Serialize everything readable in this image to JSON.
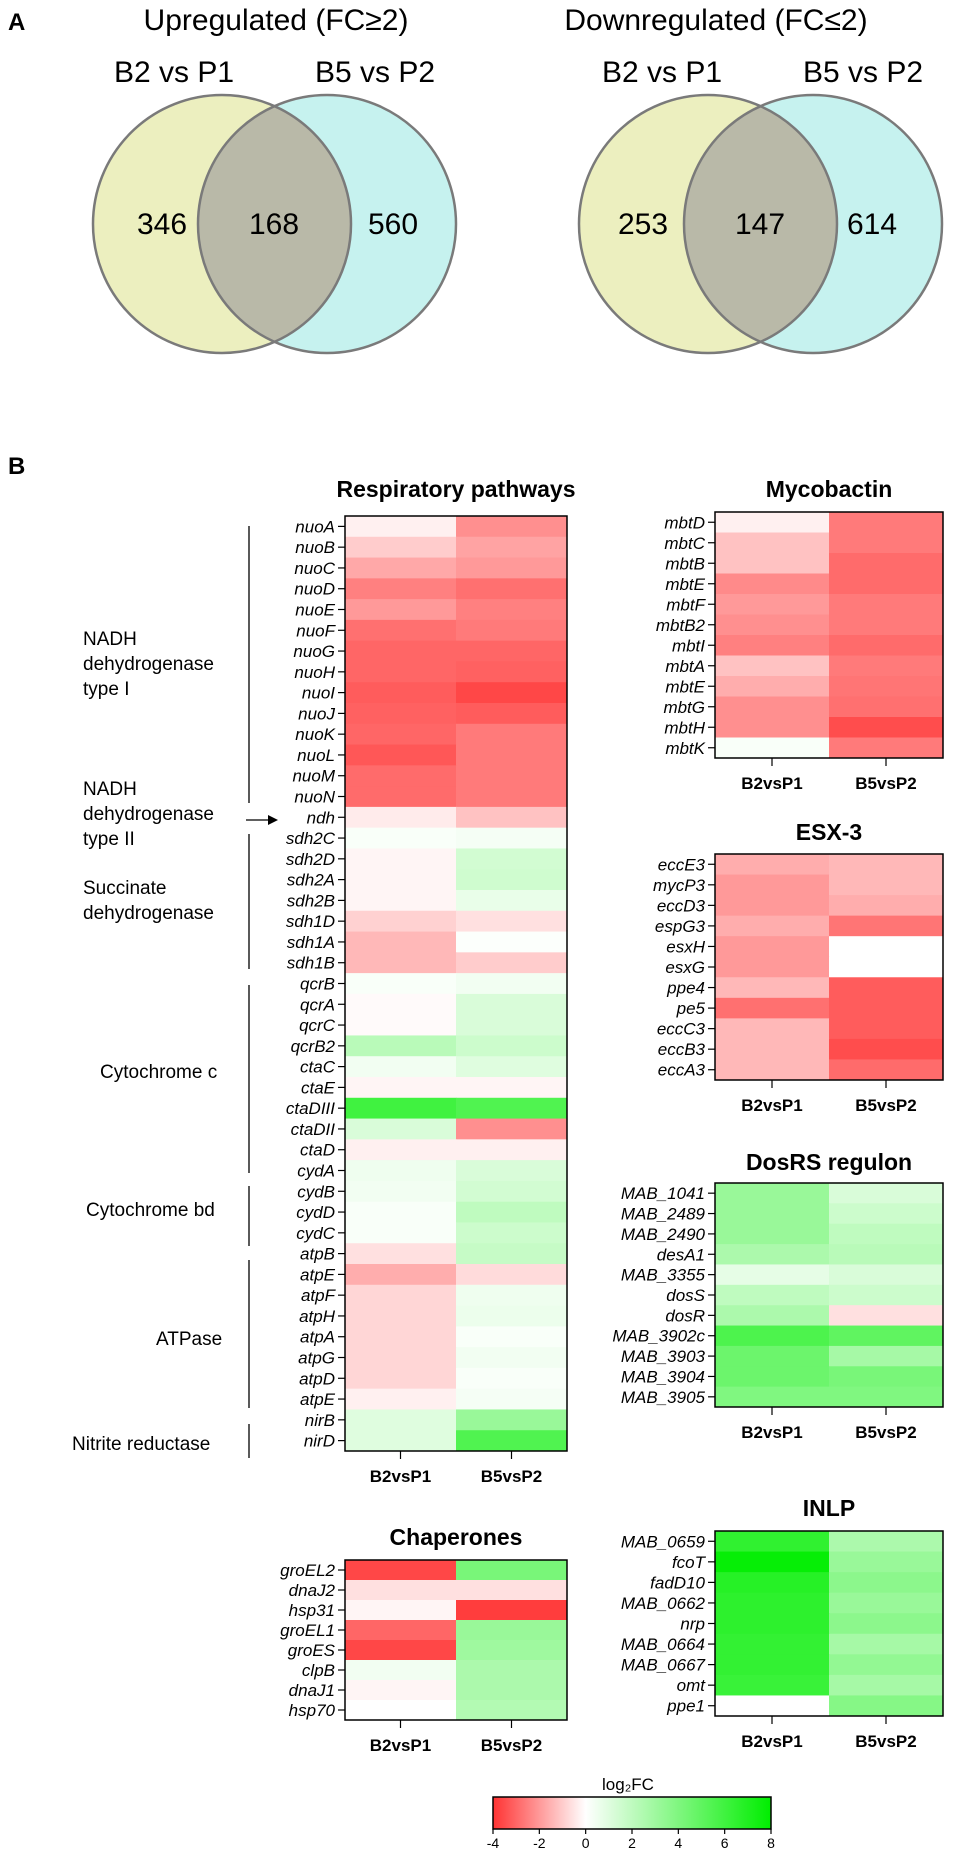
{
  "panel_labels": {
    "a": "A",
    "b": "B"
  },
  "venn": [
    {
      "title": "Upregulated (FC≥2)",
      "left_label": "B2 vs P1",
      "right_label": "B5 vs P2",
      "left_only": "346",
      "overlap": "168",
      "right_only": "560"
    },
    {
      "title": "Downregulated (FC≤2)",
      "left_label": "B2 vs P1",
      "right_label": "B5 vs P2",
      "left_only": "253",
      "overlap": "147",
      "right_only": "614"
    }
  ],
  "colors": {
    "venn_left": "#ecefbf",
    "venn_right": "#c6f2ef",
    "venn_overlap": "#b9b9a8",
    "venn_edge": "#7a7a7a",
    "neg": "#ff3333",
    "zero": "#ffffff",
    "pos": "#00ee00"
  },
  "colorbar": {
    "label": "log₂FC",
    "ticks": [
      "-4",
      "-2",
      "0",
      "2",
      "4",
      "6",
      "8"
    ],
    "min": -4,
    "max": 8
  },
  "heatmap_columns": [
    "B2vsP1",
    "B5vsP2"
  ],
  "group_labels": [
    {
      "id": "nadh1",
      "lines": [
        "NADH",
        "dehydrogenase",
        "type I"
      ]
    },
    {
      "id": "nadh2",
      "lines": [
        "NADH",
        "dehydrogenase",
        "type II"
      ]
    },
    {
      "id": "sdh",
      "lines": [
        "Succinate",
        "dehydrogenase"
      ]
    },
    {
      "id": "cytc",
      "lines": [
        "Cytochrome c"
      ]
    },
    {
      "id": "cytbd",
      "lines": [
        "Cytochrome bd"
      ]
    },
    {
      "id": "atpase",
      "lines": [
        "ATPase"
      ]
    },
    {
      "id": "nitrite",
      "lines": [
        "Nitrite reductase"
      ]
    }
  ],
  "chart_data": [
    {
      "type": "heatmap",
      "title": "Respiratory pathways",
      "columns": [
        "B2vsP1",
        "B5vsP2"
      ],
      "rows": [
        "nuoA",
        "nuoB",
        "nuoC",
        "nuoD",
        "nuoE",
        "nuoF",
        "nuoG",
        "nuoH",
        "nuoI",
        "nuoJ",
        "nuoK",
        "nuoL",
        "nuoM",
        "nuoN",
        "ndh",
        "sdh2C",
        "sdh2D",
        "sdh2A",
        "sdh2B",
        "sdh1D",
        "sdh1A",
        "sdh1B",
        "qcrB",
        "qcrA",
        "qcrC",
        "qcrB2",
        "ctaC",
        "ctaE",
        "ctaDIII",
        "ctaDII",
        "ctaD",
        "cydA",
        "cydB",
        "cydD",
        "cydC",
        "atpB",
        "atpE",
        "atpF",
        "atpH",
        "atpA",
        "atpG",
        "atpD",
        "atpE",
        "nirB",
        "nirD"
      ],
      "values": [
        [
          -0.3,
          -2.2
        ],
        [
          -1.0,
          -1.8
        ],
        [
          -1.7,
          -2.0
        ],
        [
          -2.5,
          -2.8
        ],
        [
          -2.0,
          -2.5
        ],
        [
          -2.8,
          -2.6
        ],
        [
          -3.0,
          -3.0
        ],
        [
          -3.0,
          -3.1
        ],
        [
          -3.2,
          -3.6
        ],
        [
          -3.1,
          -3.2
        ],
        [
          -3.0,
          -2.6
        ],
        [
          -3.3,
          -2.6
        ],
        [
          -2.9,
          -2.6
        ],
        [
          -2.9,
          -2.6
        ],
        [
          -0.4,
          -1.2
        ],
        [
          0.2,
          0.3
        ],
        [
          -0.2,
          1.4
        ],
        [
          -0.2,
          1.5
        ],
        [
          -0.2,
          0.7
        ],
        [
          -0.9,
          -0.6
        ],
        [
          -1.4,
          0.1
        ],
        [
          -1.4,
          -1.0
        ],
        [
          0.2,
          0.4
        ],
        [
          -0.1,
          1.2
        ],
        [
          -0.1,
          1.2
        ],
        [
          2.2,
          1.6
        ],
        [
          0.4,
          1.0
        ],
        [
          -0.2,
          -0.2
        ],
        [
          6.0,
          5.5
        ],
        [
          1.2,
          -2.2
        ],
        [
          -0.3,
          -0.3
        ],
        [
          0.5,
          1.2
        ],
        [
          0.4,
          1.4
        ],
        [
          0.2,
          2.0
        ],
        [
          0.2,
          1.6
        ],
        [
          -0.6,
          1.8
        ],
        [
          -1.6,
          -0.7
        ],
        [
          -0.8,
          0.5
        ],
        [
          -0.8,
          0.6
        ],
        [
          -0.8,
          0.2
        ],
        [
          -0.8,
          0.4
        ],
        [
          -0.8,
          0.2
        ],
        [
          -0.3,
          0.3
        ],
        [
          1.0,
          3.2
        ],
        [
          1.0,
          5.5
        ]
      ],
      "row_groups": [
        {
          "label": "NADH dehydrogenase type I",
          "rows": [
            "nuoA",
            "nuoN"
          ]
        },
        {
          "label": "NADH dehydrogenase type II",
          "rows": [
            "ndh",
            "ndh"
          ]
        },
        {
          "label": "Succinate dehydrogenase",
          "rows": [
            "sdh2C",
            "sdh1B"
          ]
        },
        {
          "label": "Cytochrome c",
          "rows": [
            "qcrB",
            "ctaD"
          ]
        },
        {
          "label": "Cytochrome bd",
          "rows": [
            "cydA",
            "cydC"
          ]
        },
        {
          "label": "ATPase",
          "rows": [
            "atpB",
            "atpE"
          ]
        },
        {
          "label": "Nitrite reductase",
          "rows": [
            "nirB",
            "nirD"
          ]
        }
      ],
      "color_scale": {
        "min": -4,
        "max": 8,
        "low": "red",
        "mid": "white",
        "high": "green"
      }
    },
    {
      "type": "heatmap",
      "title": "Mycobactin",
      "columns": [
        "B2vsP1",
        "B5vsP2"
      ],
      "rows": [
        "mbtD",
        "mbtC",
        "mbtB",
        "mbtE",
        "mbtF",
        "mbtB2",
        "mbtI",
        "mbtA",
        "mbtE",
        "mbtG",
        "mbtH",
        "mbtK"
      ],
      "values": [
        [
          -0.3,
          -2.6
        ],
        [
          -1.2,
          -2.6
        ],
        [
          -1.2,
          -2.9
        ],
        [
          -2.3,
          -2.9
        ],
        [
          -2.0,
          -2.6
        ],
        [
          -2.2,
          -2.6
        ],
        [
          -2.5,
          -2.9
        ],
        [
          -1.2,
          -2.6
        ],
        [
          -1.6,
          -2.7
        ],
        [
          -2.2,
          -2.8
        ],
        [
          -2.2,
          -3.5
        ],
        [
          0.2,
          -2.6
        ]
      ]
    },
    {
      "type": "heatmap",
      "title": "ESX-3",
      "columns": [
        "B2vsP1",
        "B5vsP2"
      ],
      "rows": [
        "eccE3",
        "mycP3",
        "eccD3",
        "espG3",
        "esxH",
        "esxG",
        "ppe4",
        "pe5",
        "eccC3",
        "eccB3",
        "eccA3"
      ],
      "values": [
        [
          -1.6,
          -1.4
        ],
        [
          -2.0,
          -1.4
        ],
        [
          -2.0,
          -1.6
        ],
        [
          -1.6,
          -2.7
        ],
        [
          -2.0,
          0.0
        ],
        [
          -2.0,
          0.0
        ],
        [
          -1.4,
          -3.2
        ],
        [
          -2.8,
          -3.2
        ],
        [
          -1.4,
          -3.2
        ],
        [
          -1.4,
          -3.5
        ],
        [
          -1.4,
          -2.9
        ]
      ]
    },
    {
      "type": "heatmap",
      "title": "DosRS regulon",
      "columns": [
        "B2vsP1",
        "B5vsP2"
      ],
      "rows": [
        "MAB_1041",
        "MAB_2489",
        "MAB_2490",
        "desA1",
        "MAB_3355",
        "dosS",
        "dosR",
        "MAB_3902c",
        "MAB_3903",
        "MAB_3904",
        "MAB_3905"
      ],
      "values": [
        [
          3.2,
          1.2
        ],
        [
          3.2,
          1.6
        ],
        [
          3.2,
          2.0
        ],
        [
          2.6,
          2.2
        ],
        [
          0.8,
          1.2
        ],
        [
          2.0,
          1.6
        ],
        [
          2.6,
          -0.6
        ],
        [
          5.6,
          5.0
        ],
        [
          4.6,
          2.8
        ],
        [
          4.6,
          4.2
        ],
        [
          4.0,
          4.0
        ]
      ]
    },
    {
      "type": "heatmap",
      "title": "Chaperones",
      "columns": [
        "B2vsP1",
        "B5vsP2"
      ],
      "rows": [
        "groEL2",
        "dnaJ2",
        "hsp31",
        "groEL1",
        "groES",
        "clpB",
        "dnaJ1",
        "hsp70"
      ],
      "values": [
        [
          -3.6,
          4.2
        ],
        [
          -0.6,
          -0.6
        ],
        [
          -0.2,
          -3.8
        ],
        [
          -3.0,
          3.2
        ],
        [
          -3.6,
          3.0
        ],
        [
          0.4,
          2.6
        ],
        [
          -0.2,
          2.6
        ],
        [
          0.0,
          2.4
        ]
      ]
    },
    {
      "type": "heatmap",
      "title": "INLP",
      "columns": [
        "B2vsP1",
        "B5vsP2"
      ],
      "rows": [
        "MAB_0659",
        "fcoT",
        "fadD10",
        "MAB_0662",
        "nrp",
        "MAB_0664",
        "MAB_0667",
        "omt",
        "ppe1"
      ],
      "values": [
        [
          6.5,
          2.6
        ],
        [
          7.8,
          3.2
        ],
        [
          6.8,
          3.6
        ],
        [
          6.6,
          3.2
        ],
        [
          6.6,
          3.6
        ],
        [
          6.4,
          2.8
        ],
        [
          6.4,
          3.4
        ],
        [
          6.2,
          2.8
        ],
        [
          0.0,
          3.8
        ]
      ]
    }
  ]
}
